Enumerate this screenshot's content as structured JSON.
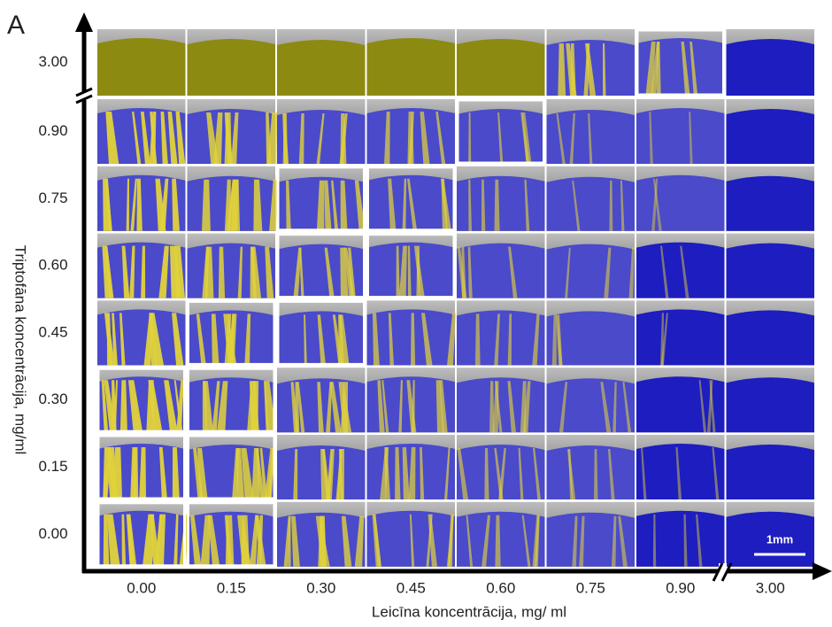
{
  "figure": {
    "panel_label": "A",
    "y_axis_title": "Triptofāna koncentrācija, mg/ml",
    "x_axis_title": "Leicīna koncentrācija, mg/ ml",
    "y_labels": [
      "3.00",
      "0.90",
      "0.75",
      "0.60",
      "0.45",
      "0.30",
      "0.15",
      "0.00"
    ],
    "x_labels": [
      "0.00",
      "0.15",
      "0.30",
      "0.45",
      "0.60",
      "0.75",
      "0.90",
      "3.00"
    ],
    "scale_bar": "1mm"
  }
}
